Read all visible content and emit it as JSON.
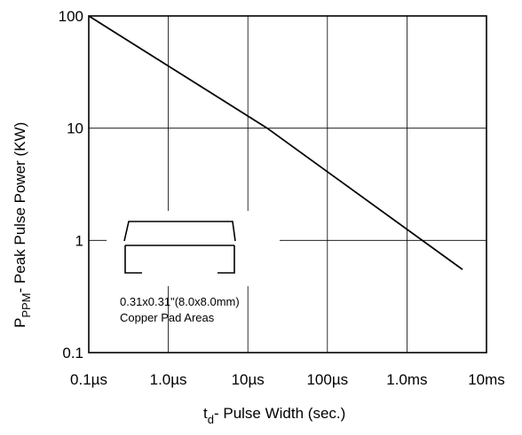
{
  "chart_data": {
    "type": "line",
    "title": "",
    "xlabel": {
      "main": "t",
      "sub": "d",
      "rest": "- Pulse Width (sec.)"
    },
    "ylabel": {
      "main": "P",
      "sub": "PPM",
      "rest": "- Peak Pulse Power (KW)"
    },
    "x_scale": "log",
    "y_scale": "log",
    "xlim": [
      "0.1µs",
      "10ms"
    ],
    "ylim": [
      0.1,
      100
    ],
    "x_ticks": [
      {
        "value_s": 1e-07,
        "label": "0.1µs"
      },
      {
        "value_s": 1e-06,
        "label": "1.0µs"
      },
      {
        "value_s": 1e-05,
        "label": "10µs"
      },
      {
        "value_s": 0.0001,
        "label": "100µs"
      },
      {
        "value_s": 0.001,
        "label": "1.0ms"
      },
      {
        "value_s": 0.01,
        "label": "10ms"
      }
    ],
    "y_ticks": [
      {
        "value": 100,
        "label": "100"
      },
      {
        "value": 10,
        "label": "10"
      },
      {
        "value": 1,
        "label": "1"
      },
      {
        "value": 0.1,
        "label": "0.1"
      }
    ],
    "grid": true,
    "series": [
      {
        "points": [
          {
            "x_s": 1e-07,
            "y_kw": 100
          },
          {
            "x_s": 1.75e-05,
            "y_kw": 10
          },
          {
            "x_s": 0.005,
            "y_kw": 0.55
          }
        ]
      }
    ],
    "annotation": {
      "lines": [
        "0.31x0.31\"(8.0x8.0mm)",
        "Copper Pad Areas"
      ]
    }
  }
}
